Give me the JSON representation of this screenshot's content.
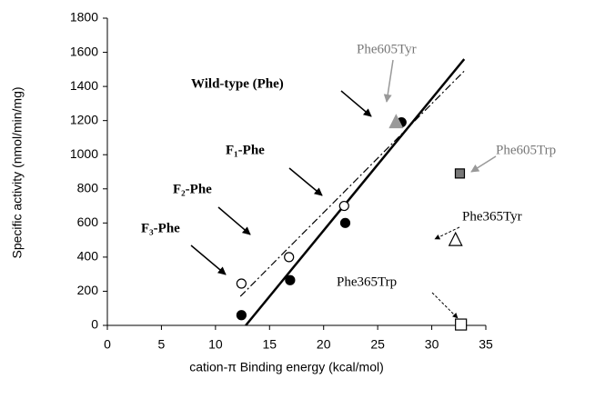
{
  "chart_data": {
    "type": "scatter",
    "xlabel": "cation-π Binding energy (kcal/mol)",
    "ylabel": "Specific activity (nmol/min/mg)",
    "xlim": [
      0,
      35
    ],
    "xticks": [
      0,
      5,
      10,
      15,
      20,
      25,
      30,
      35
    ],
    "ylim": [
      0,
      1800
    ],
    "yticks": [
      0,
      200,
      400,
      600,
      800,
      1000,
      1200,
      1400,
      1600,
      1800
    ],
    "series": [
      {
        "marker": "circle",
        "filled": true,
        "color": "#000000",
        "x": [
          12.4,
          16.9,
          22,
          27.2
        ],
        "y": [
          60,
          265,
          600,
          1190
        ]
      },
      {
        "marker": "circle",
        "filled": false,
        "color": "#000000",
        "x": [
          12.4,
          16.8,
          21.9
        ],
        "y": [
          245,
          400,
          700
        ]
      },
      {
        "marker": "triangle",
        "filled": true,
        "color": "#999999",
        "x": [
          26.7
        ],
        "y": [
          1190
        ]
      },
      {
        "marker": "square",
        "filled": true,
        "color": "#777777",
        "x": [
          32.6
        ],
        "y": [
          890
        ]
      },
      {
        "marker": "triangle",
        "filled": false,
        "color": "#000000",
        "x": [
          32.2
        ],
        "y": [
          500
        ]
      },
      {
        "marker": "square",
        "filled": false,
        "color": "#000000",
        "x": [
          32.7
        ],
        "y": [
          5
        ]
      }
    ],
    "fit_lines": [
      {
        "style": "solid",
        "color": "#000000",
        "x": [
          12.8,
          33
        ],
        "y": [
          0,
          1560
        ]
      },
      {
        "style": "dashdot",
        "color": "#000000",
        "x": [
          12.3,
          33
        ],
        "y": [
          170,
          1490
        ]
      }
    ],
    "annotations": [
      "Wild-type (Phe)",
      "F₁-Phe",
      "F₂-Phe",
      "F₃-Phe",
      "Phe605Tyr",
      "Phe605Trp",
      "Phe365Tyr",
      "Phe365Trp"
    ]
  }
}
